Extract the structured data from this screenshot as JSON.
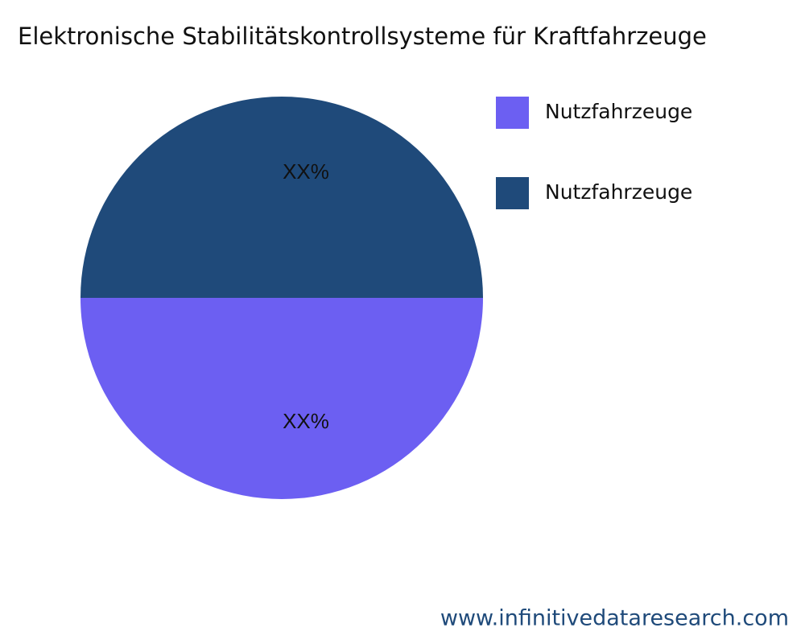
{
  "chart_data": {
    "type": "pie",
    "title": "Elektronische Stabilitätskontrollsysteme für Kraftfahrzeuge",
    "categories": [
      "Nutzfahrzeuge",
      "Nutzfahrzeuge"
    ],
    "values": [
      50,
      50
    ],
    "value_labels": [
      "XX%",
      "XX%"
    ],
    "colors": [
      "#6c5ff2",
      "#1f4a7a"
    ],
    "legend": "top-right",
    "source": "www.infinitivedataresearch.com"
  }
}
